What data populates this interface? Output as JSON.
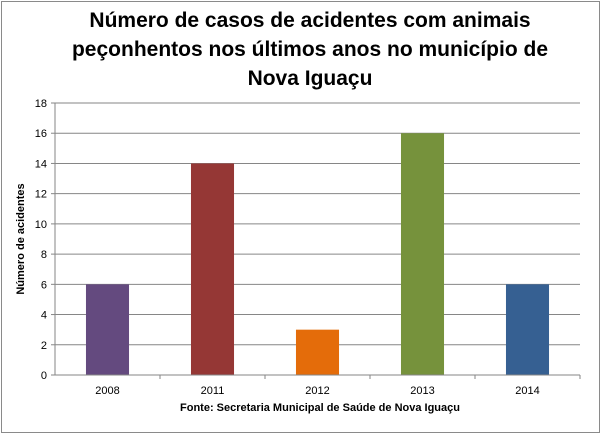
{
  "chart_data": {
    "type": "bar",
    "title": "Número de casos de acidentes com animais peçonhentos nos últimos anos no município de Nova Iguaçu",
    "xlabel": "Fonte: Secretaria Municipal  de Saúde de Nova Iguaçu",
    "ylabel": "Número de acidentes",
    "categories": [
      "2008",
      "2011",
      "2012",
      "2013",
      "2014"
    ],
    "values": [
      6,
      14,
      3,
      16,
      6
    ],
    "colors": [
      "#644a7f",
      "#953735",
      "#e46c0a",
      "#76923c",
      "#366092"
    ],
    "ylim": [
      0,
      18
    ],
    "yticks": [
      0,
      2,
      4,
      6,
      8,
      10,
      12,
      14,
      16,
      18
    ],
    "grid": true,
    "legend": "none"
  }
}
